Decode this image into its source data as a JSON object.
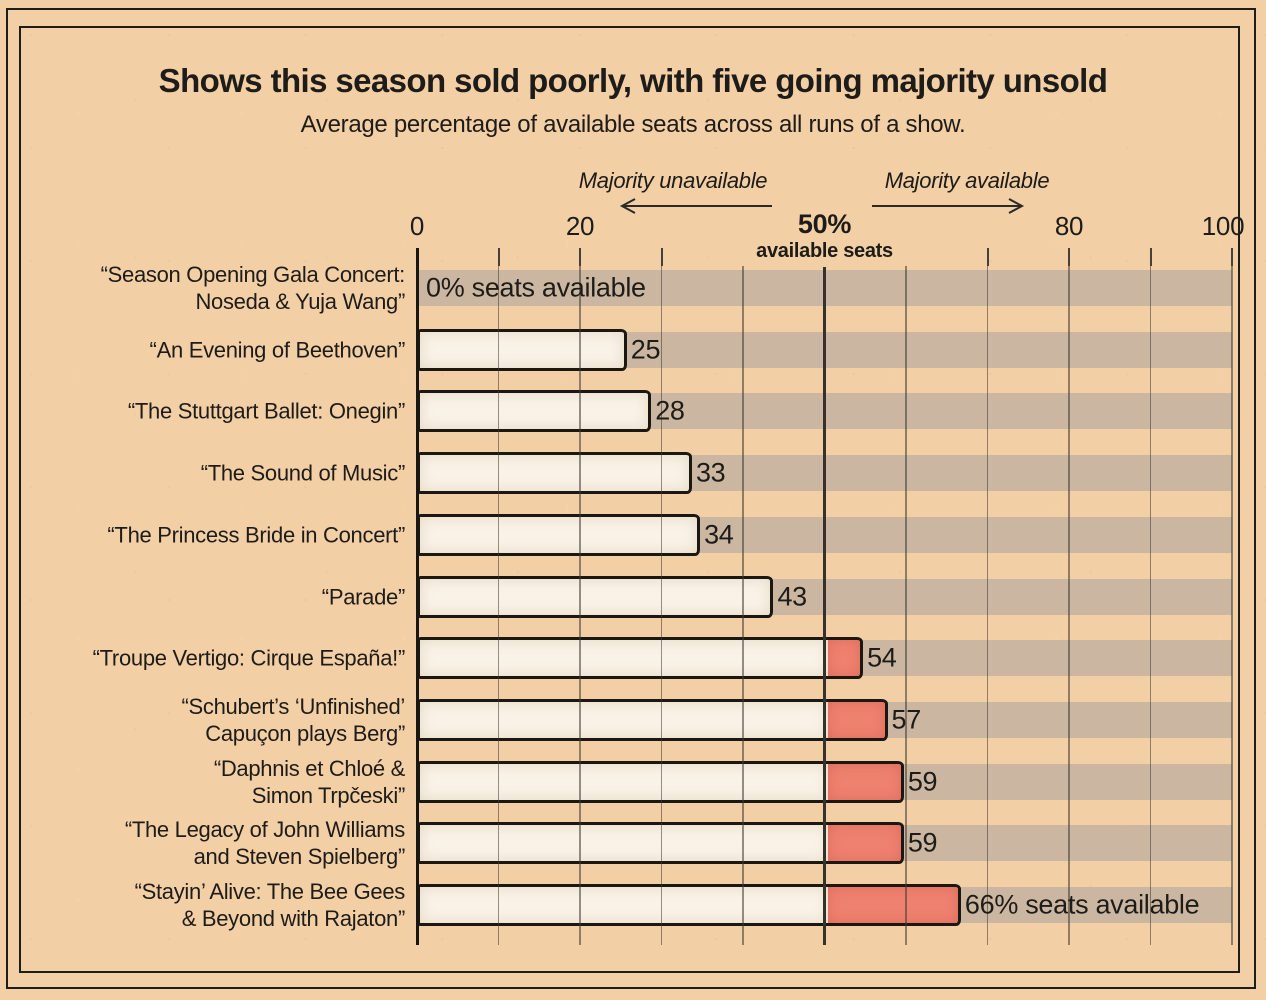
{
  "chart_data": {
    "type": "bar",
    "orientation": "horizontal",
    "title": "Shows this season sold poorly, with five going majority unsold",
    "subtitle": "Average percentage of available seats across all runs of a show.",
    "xlabel": "available seats",
    "xlim": [
      0,
      100
    ],
    "gridline_step": 10,
    "grid": true,
    "legend": false,
    "threshold": 50,
    "annotations": {
      "left_label": "Majority unavailable",
      "right_label": "Majority available"
    },
    "axis_ticks": [
      {
        "value": 0,
        "label": "0",
        "bold": false
      },
      {
        "value": 20,
        "label": "20",
        "bold": false
      },
      {
        "value": 50,
        "label": "50%",
        "bold": true,
        "sub_label": "available seats"
      },
      {
        "value": 80,
        "label": "80",
        "bold": false
      },
      {
        "value": 100,
        "label": "100",
        "bold": false
      }
    ],
    "categories": [
      "“Season Opening Gala Concert:\nNoseda & Yuja Wang”",
      "“An Evening of Beethoven”",
      "“The Stuttgart Ballet: Onegin”",
      "“The Sound of Music”",
      "“The Princess Bride in Concert”",
      "“Parade”",
      "“Troupe Vertigo: Cirque España!”",
      "“Schubert’s ‘Unfinished’\nCapuçon plays Berg”",
      "“Daphnis et Chloé &\nSimon Trpčeski”",
      "“The Legacy of John Williams\nand Steven Spielberg”",
      "“Stayin’ Alive: The Bee Gees\n& Beyond with Rajaton”"
    ],
    "values": [
      0,
      25,
      28,
      33,
      34,
      43,
      54,
      57,
      59,
      59,
      66
    ],
    "value_labels": [
      "0% seats available",
      "25",
      "28",
      "33",
      "34",
      "43",
      "54",
      "57",
      "59",
      "59",
      "66% seats available"
    ],
    "colors": {
      "background": "#f3cfa6",
      "row_track": "#cbb7a1",
      "bar_fill": "#f9f3e7",
      "over_threshold_fill": "#ef8170",
      "bar_outline": "#1b1813",
      "gridline_on_top": "rgba(62,57,47,0.55)",
      "tick": "#45413a",
      "zero_line": "#191712",
      "threshold_line": "#35322b",
      "text": "#1d1c18"
    }
  }
}
